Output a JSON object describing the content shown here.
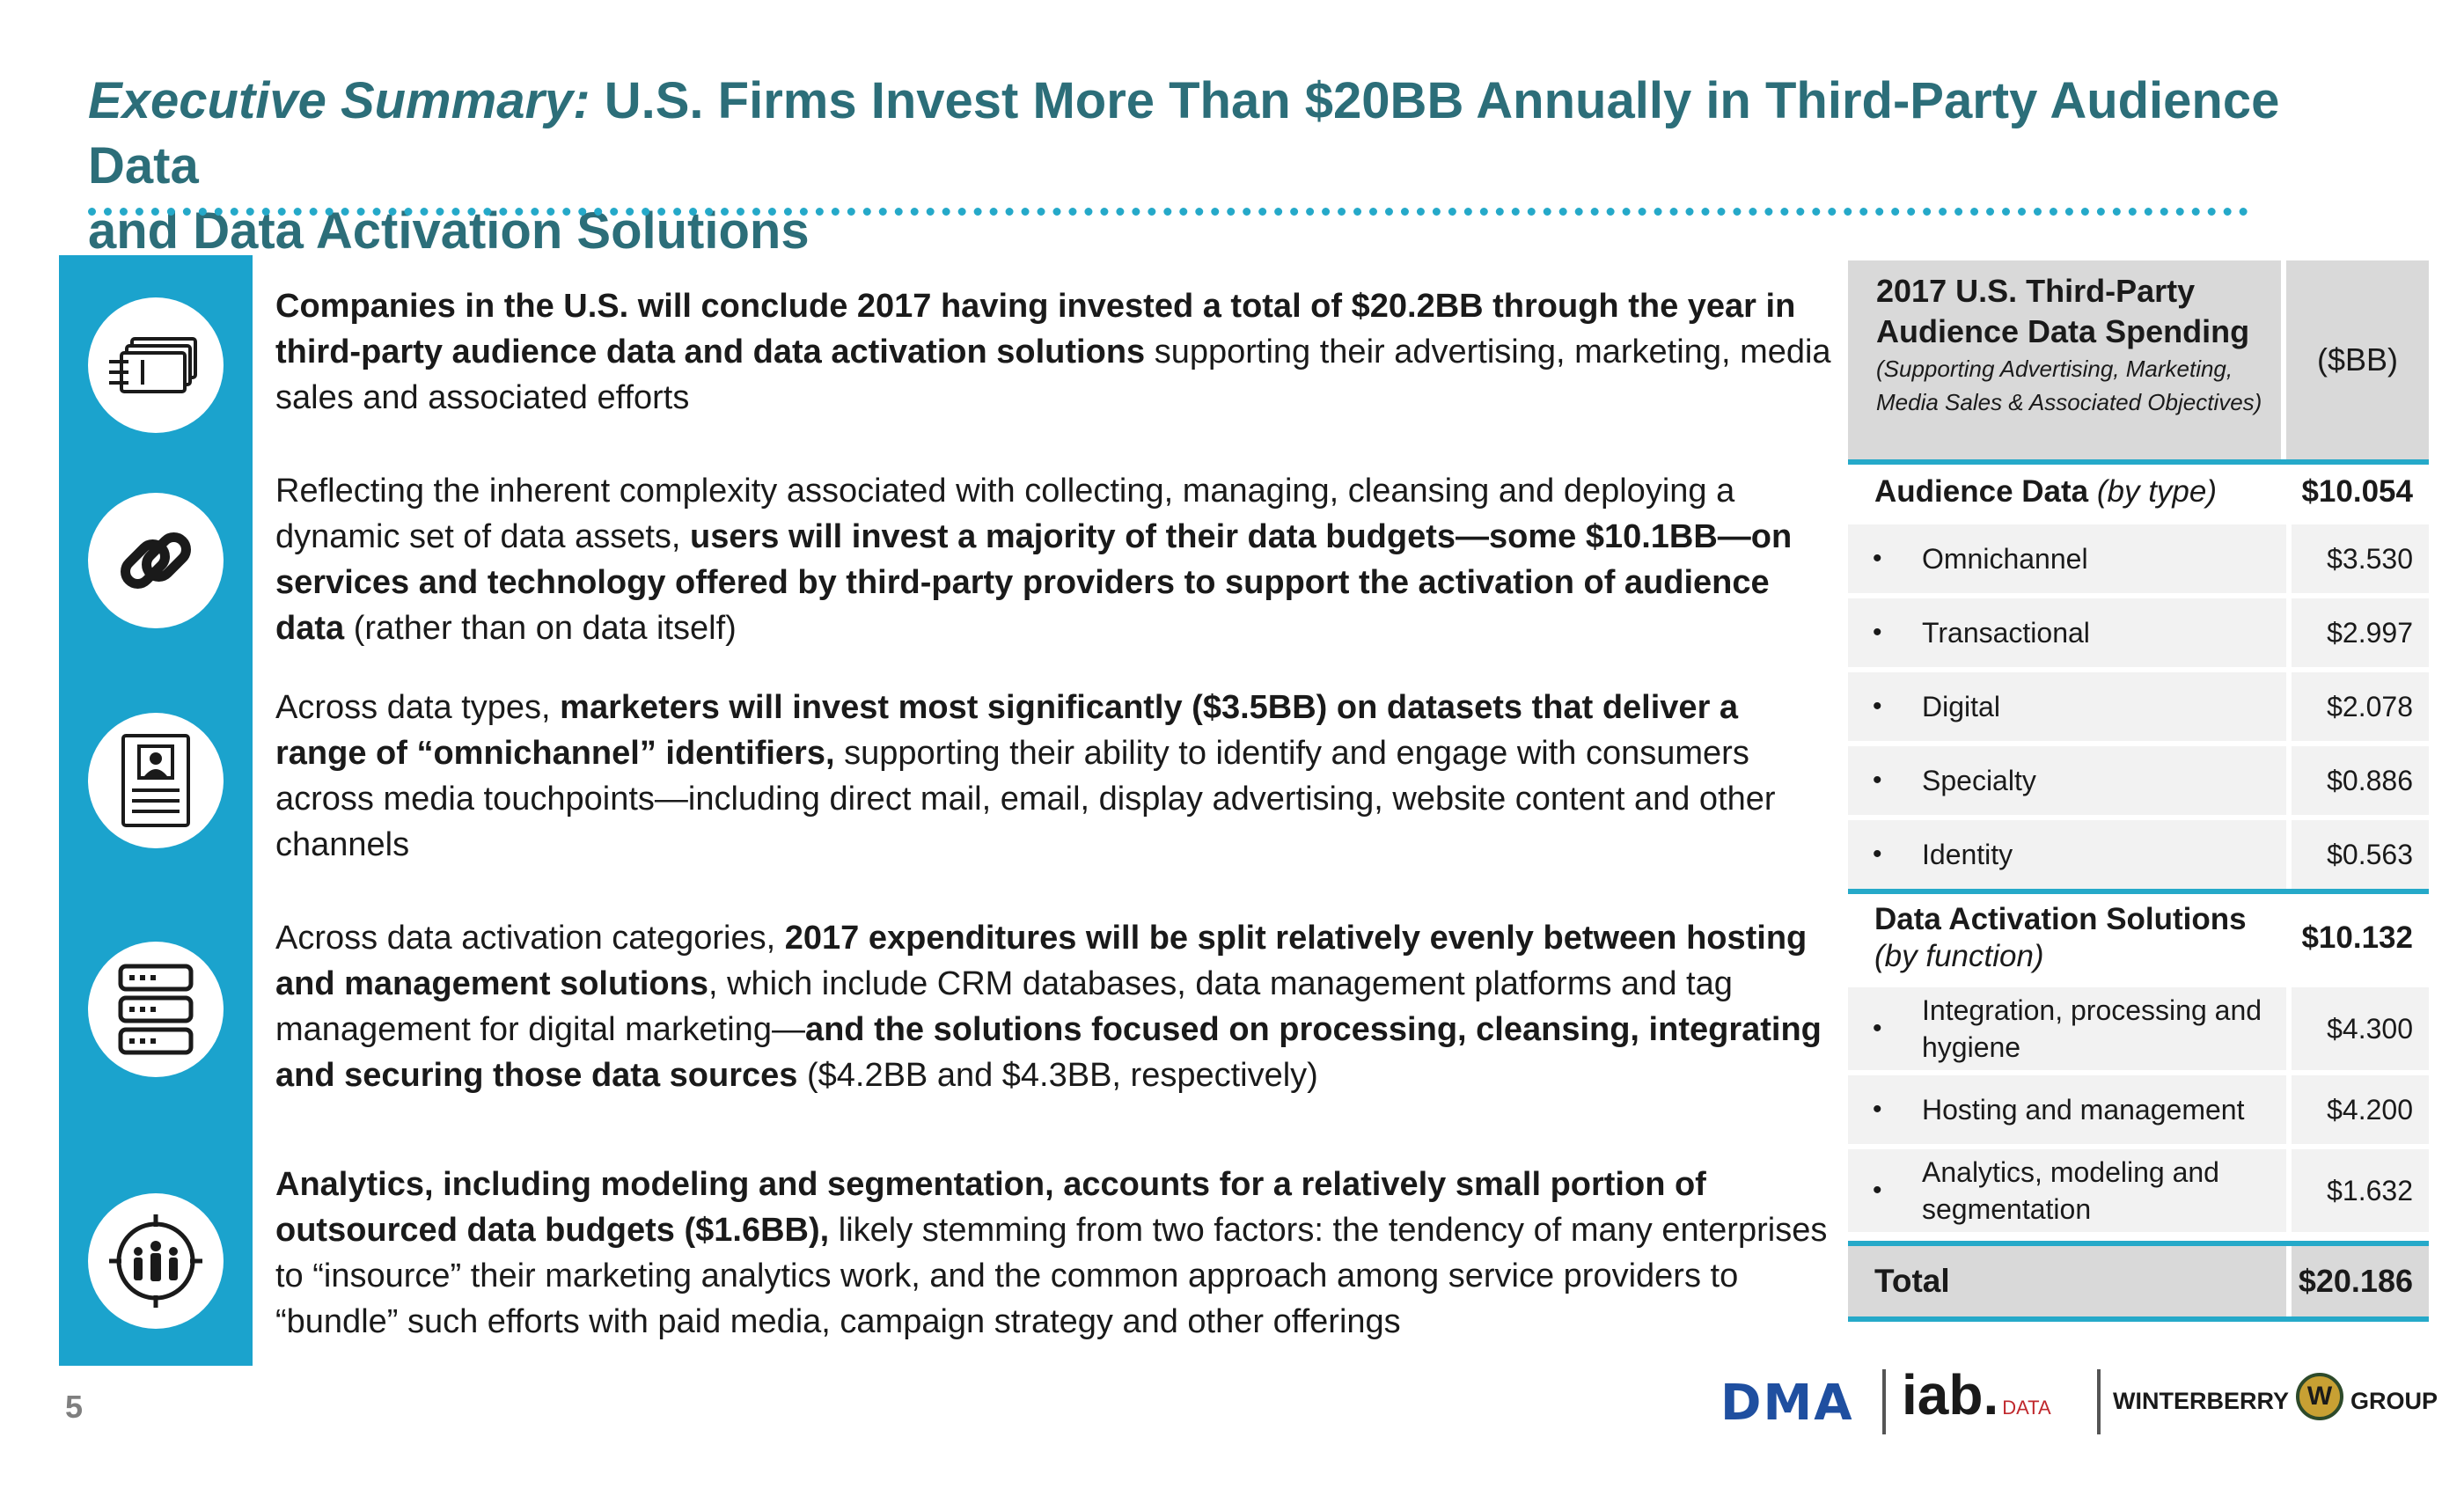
{
  "title": {
    "lead": "Executive Summary:",
    "line1": "U.S. Firms Invest More Than $20BB Annually in Third-Party Audience Data",
    "line2": "and Data Activation Solutions"
  },
  "icons": [
    "money-stack-icon",
    "chain-link-icon",
    "profile-document-icon",
    "server-stack-icon",
    "people-target-icon"
  ],
  "paragraphs": [
    {
      "bold": "Companies in the U.S. will conclude 2017 having  invested a total of $20.2BB through the year in third-party audience data and data activation solutions",
      "rest": " supporting their advertising, marketing, media sales and associated efforts"
    },
    {
      "pre": "Reflecting the inherent complexity associated with collecting, managing, cleansing and deploying a dynamic set of data assets, ",
      "bold": "users will invest a majority of their data budgets—some $10.1BB—on services and technology offered by third-party providers to support the activation of audience data",
      "post": " (rather than on data itself)"
    },
    {
      "pre": "Across data types, ",
      "bold": "marketers will invest most significantly ($3.5BB) on datasets that deliver a range of “omnichannel” identifiers,",
      "post": " supporting their ability to identify and engage with consumers across  media touchpoints—including direct mail, email, display advertising, website content and other channels"
    },
    {
      "pre": "Across data activation categories, ",
      "bold": "2017 expenditures will be split relatively evenly between hosting and management solutions",
      "mid": ", which include CRM databases, data management platforms and tag management for digital marketing—",
      "bold2": "and the solutions focused on processing, cleansing, integrating and securing those data sources",
      "post": " ($4.2BB and $4.3BB, respectively)"
    },
    {
      "bold": "Analytics, including modeling and segmentation, accounts for a relatively small portion of outsourced data budgets ($1.6BB),",
      "rest": " likely stemming from two factors: the tendency of many enterprises to “insource” their marketing analytics work, and the common approach among service providers to “bundle” such efforts with paid media, campaign strategy and other offerings"
    }
  ],
  "table": {
    "header_title": "2017 U.S. Third-Party Audience Data Spending",
    "header_sub": "(Supporting Advertising, Marketing, Media Sales & Associated Objectives)",
    "unit": "($BB)",
    "audience": {
      "label": "Audience Data",
      "label_italic": "(by type)",
      "value": "$10.054"
    },
    "audience_rows": [
      {
        "label": "Omnichannel",
        "value": "$3.530"
      },
      {
        "label": "Transactional",
        "value": "$2.997"
      },
      {
        "label": "Digital",
        "value": "$2.078"
      },
      {
        "label": "Specialty",
        "value": "$0.886"
      },
      {
        "label": "Identity",
        "value": "$0.563"
      }
    ],
    "activation": {
      "label": "Data Activation Solutions",
      "label_italic": "(by function)",
      "value": "$10.132"
    },
    "activation_rows": [
      {
        "label": "Integration, processing and hygiene",
        "value": "$4.300"
      },
      {
        "label": "Hosting and management",
        "value": "$4.200"
      },
      {
        "label": "Analytics, modeling and segmentation",
        "value": "$1.632"
      }
    ],
    "total": {
      "label": "Total",
      "value": "$20.186"
    }
  },
  "page_number": "5",
  "logos": {
    "dma": "DMA",
    "iab": "iab.",
    "iab_data": "DATA",
    "winterberry": "WINTERBERRY",
    "w": "W",
    "group": "GROUP"
  },
  "colors": {
    "accent": "#1ba3cd",
    "title": "#2c6e79",
    "dma_blue": "#1f4fa0"
  }
}
